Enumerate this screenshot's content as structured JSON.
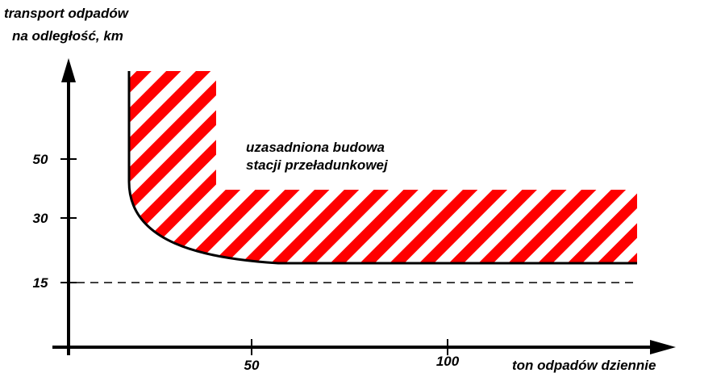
{
  "axes": {
    "y_title": [
      "transport odpadów",
      "na odległość, km"
    ],
    "x_title": "ton odpadów dziennie",
    "y_ticks": [
      "50",
      "30",
      "15"
    ],
    "x_ticks": [
      "50",
      "100"
    ]
  },
  "annotation": [
    "uzasadniona budowa",
    "stacji przeładunkowej"
  ]
}
